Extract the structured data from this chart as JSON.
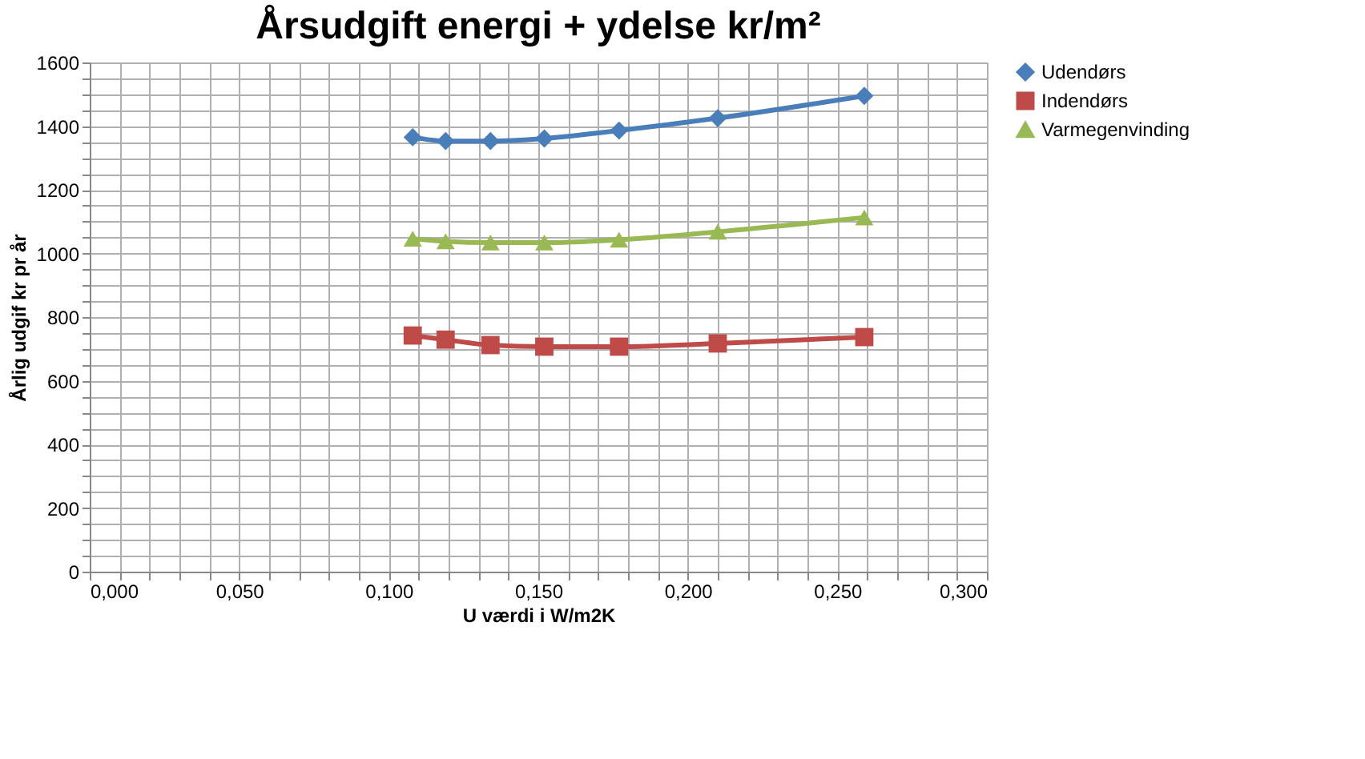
{
  "chart_data": {
    "type": "line",
    "title": "Årsudgift energi + ydelse  kr/m²",
    "xlabel": "U værdi i W/m2K",
    "ylabel": "Årlig udgif kr pr år",
    "x": [
      0.108,
      0.119,
      0.134,
      0.152,
      0.177,
      0.21,
      0.259
    ],
    "series": [
      {
        "name": "Udendørs",
        "color": "#4a7ebb",
        "marker": "diamond",
        "values": [
          1365,
          1353,
          1353,
          1361,
          1386,
          1425,
          1495
        ]
      },
      {
        "name": "Indendørs",
        "color": "#be4b48",
        "marker": "square",
        "values": [
          742,
          729,
          712,
          707,
          707,
          717,
          737
        ]
      },
      {
        "name": "Varmegenvinding",
        "color": "#98b954",
        "marker": "triangle",
        "values": [
          1046,
          1038,
          1034,
          1034,
          1043,
          1068,
          1113
        ]
      }
    ],
    "xlim": [
      0,
      0.3
    ],
    "ylim": [
      0,
      1600
    ],
    "xticks": [
      {
        "value": 0,
        "label": "0,000"
      },
      {
        "value": 0.01,
        "label": null
      },
      {
        "value": 0.02,
        "label": null
      },
      {
        "value": 0.03,
        "label": null
      },
      {
        "value": 0.04,
        "label": null
      },
      {
        "value": 0.05,
        "label": "0,050"
      },
      {
        "value": 0.06,
        "label": null
      },
      {
        "value": 0.07,
        "label": null
      },
      {
        "value": 0.08,
        "label": null
      },
      {
        "value": 0.09,
        "label": null
      },
      {
        "value": 0.1,
        "label": "0,100"
      },
      {
        "value": 0.11,
        "label": null
      },
      {
        "value": 0.12,
        "label": null
      },
      {
        "value": 0.13,
        "label": null
      },
      {
        "value": 0.14,
        "label": null
      },
      {
        "value": 0.15,
        "label": "0,150"
      },
      {
        "value": 0.16,
        "label": null
      },
      {
        "value": 0.17,
        "label": null
      },
      {
        "value": 0.18,
        "label": null
      },
      {
        "value": 0.19,
        "label": null
      },
      {
        "value": 0.2,
        "label": "0,200"
      },
      {
        "value": 0.21,
        "label": null
      },
      {
        "value": 0.22,
        "label": null
      },
      {
        "value": 0.23,
        "label": null
      },
      {
        "value": 0.24,
        "label": null
      },
      {
        "value": 0.25,
        "label": "0,250"
      },
      {
        "value": 0.26,
        "label": null
      },
      {
        "value": 0.27,
        "label": null
      },
      {
        "value": 0.28,
        "label": null
      },
      {
        "value": 0.29,
        "label": null
      },
      {
        "value": 0.3,
        "label": "0,300"
      }
    ],
    "yticks": [
      0,
      {
        "value": 50,
        "label": null
      },
      {
        "value": 100,
        "label": null
      },
      {
        "value": 150,
        "label": null
      },
      200,
      {
        "value": 250,
        "label": null
      },
      {
        "value": 300,
        "label": null
      },
      {
        "value": 350,
        "label": null
      },
      400,
      {
        "value": 450,
        "label": null
      },
      {
        "value": 500,
        "label": null
      },
      {
        "value": 550,
        "label": null
      },
      600,
      {
        "value": 650,
        "label": null
      },
      {
        "value": 700,
        "label": null
      },
      {
        "value": 750,
        "label": null
      },
      800,
      {
        "value": 850,
        "label": null
      },
      {
        "value": 900,
        "label": null
      },
      {
        "value": 950,
        "label": null
      },
      1000,
      {
        "value": 1050,
        "label": null
      },
      {
        "value": 1100,
        "label": null
      },
      {
        "value": 1150,
        "label": null
      },
      1200,
      {
        "value": 1250,
        "label": null
      },
      {
        "value": 1300,
        "label": null
      },
      {
        "value": 1350,
        "label": null
      },
      1400,
      {
        "value": 1450,
        "label": null
      },
      {
        "value": 1500,
        "label": null
      },
      {
        "value": 1550,
        "label": null
      },
      1600
    ],
    "grid": true,
    "legend": "right",
    "line_style": "solid"
  }
}
